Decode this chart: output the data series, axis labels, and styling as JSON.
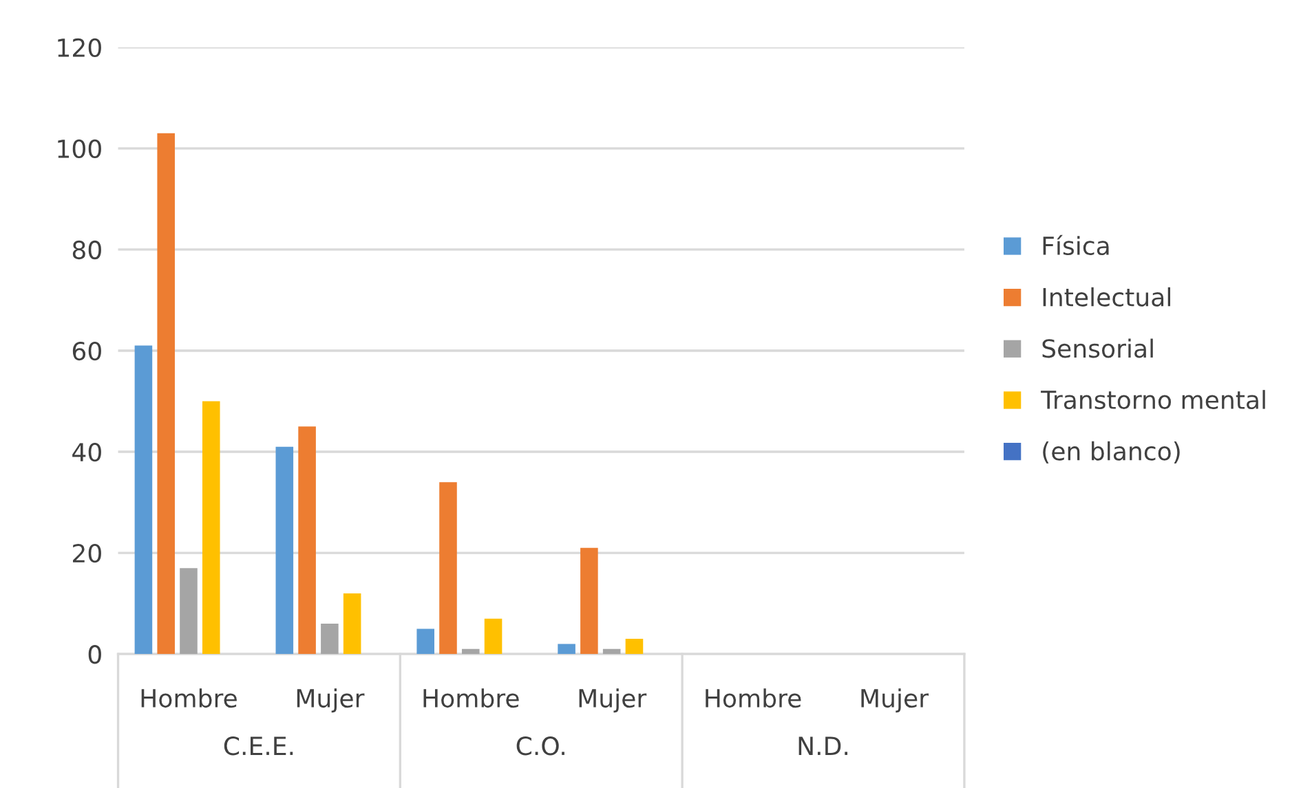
{
  "chart_data": {
    "type": "bar",
    "categories": [
      "Hombre",
      "Mujer",
      "Hombre",
      "Mujer",
      "Hombre",
      "Mujer"
    ],
    "annotations": [
      "C.E.E.",
      "C.O.",
      "N.D."
    ],
    "series": [
      {
        "name": "Física",
        "color": "#5b9bd5",
        "values": [
          61,
          41,
          5,
          2,
          null,
          null
        ]
      },
      {
        "name": "Intelectual",
        "color": "#ed7d31",
        "values": [
          103,
          45,
          34,
          21,
          null,
          null
        ]
      },
      {
        "name": "Sensorial",
        "color": "#a5a5a5",
        "values": [
          17,
          6,
          1,
          1,
          null,
          null
        ]
      },
      {
        "name": "Transtorno mental",
        "color": "#ffc000",
        "values": [
          50,
          12,
          7,
          3,
          null,
          null
        ]
      },
      {
        "name": "(en blanco)",
        "color": "#4472c4",
        "values": [
          null,
          null,
          null,
          null,
          null,
          null
        ]
      }
    ],
    "ylim": [
      0,
      120
    ],
    "yticks": [
      0,
      20,
      40,
      60,
      80,
      100,
      120
    ],
    "grid": "y",
    "legend": "right"
  }
}
